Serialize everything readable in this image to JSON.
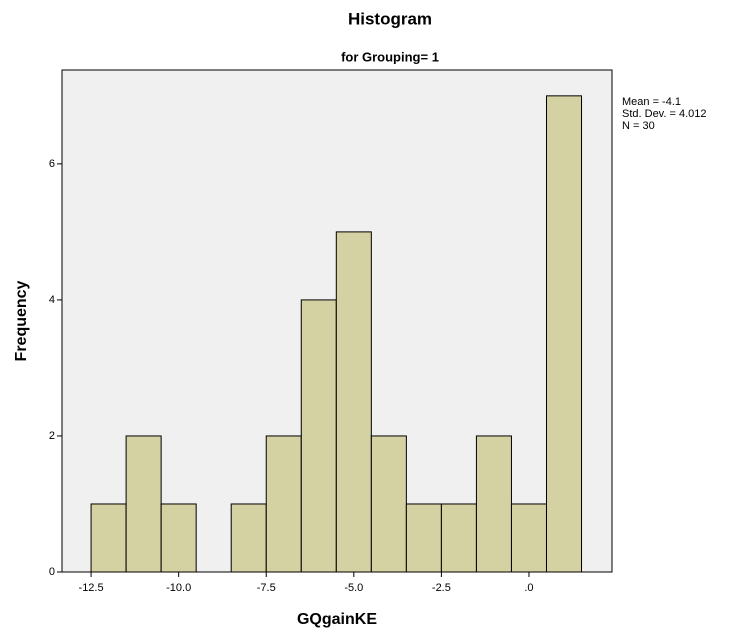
{
  "chart_data": {
    "type": "histogram",
    "title": "Histogram",
    "subtitle": "for Grouping= 1",
    "x_label": "GQgainKE",
    "y_label": "Frequency",
    "annotations": [
      "Mean = -4.1",
      "Std. Dev. = 4.012",
      "N = 30"
    ],
    "bins": [
      -12.5,
      -11.5,
      -10.5,
      -9.5,
      -8.5,
      -7.5,
      -6.5,
      -5.5,
      -4.5,
      -3.5,
      -2.5,
      -1.5,
      -0.5,
      0.5,
      1.5
    ],
    "counts": [
      1,
      2,
      1,
      0,
      1,
      2,
      4,
      5,
      2,
      1,
      1,
      2,
      1,
      7
    ],
    "color": "#cfcb94",
    "xlim": [
      -13.33,
      2.37
    ],
    "ylim": [
      0,
      7.38
    ],
    "xticks": [
      -12.5,
      {
        "value": -10,
        "label": "-10.0"
      },
      -7.5,
      {
        "value": -5,
        "label": "-5.0"
      },
      -2.5,
      {
        "value": 0,
        "label": ".0"
      }
    ],
    "yticks": [
      0,
      2,
      4,
      6
    ]
  }
}
